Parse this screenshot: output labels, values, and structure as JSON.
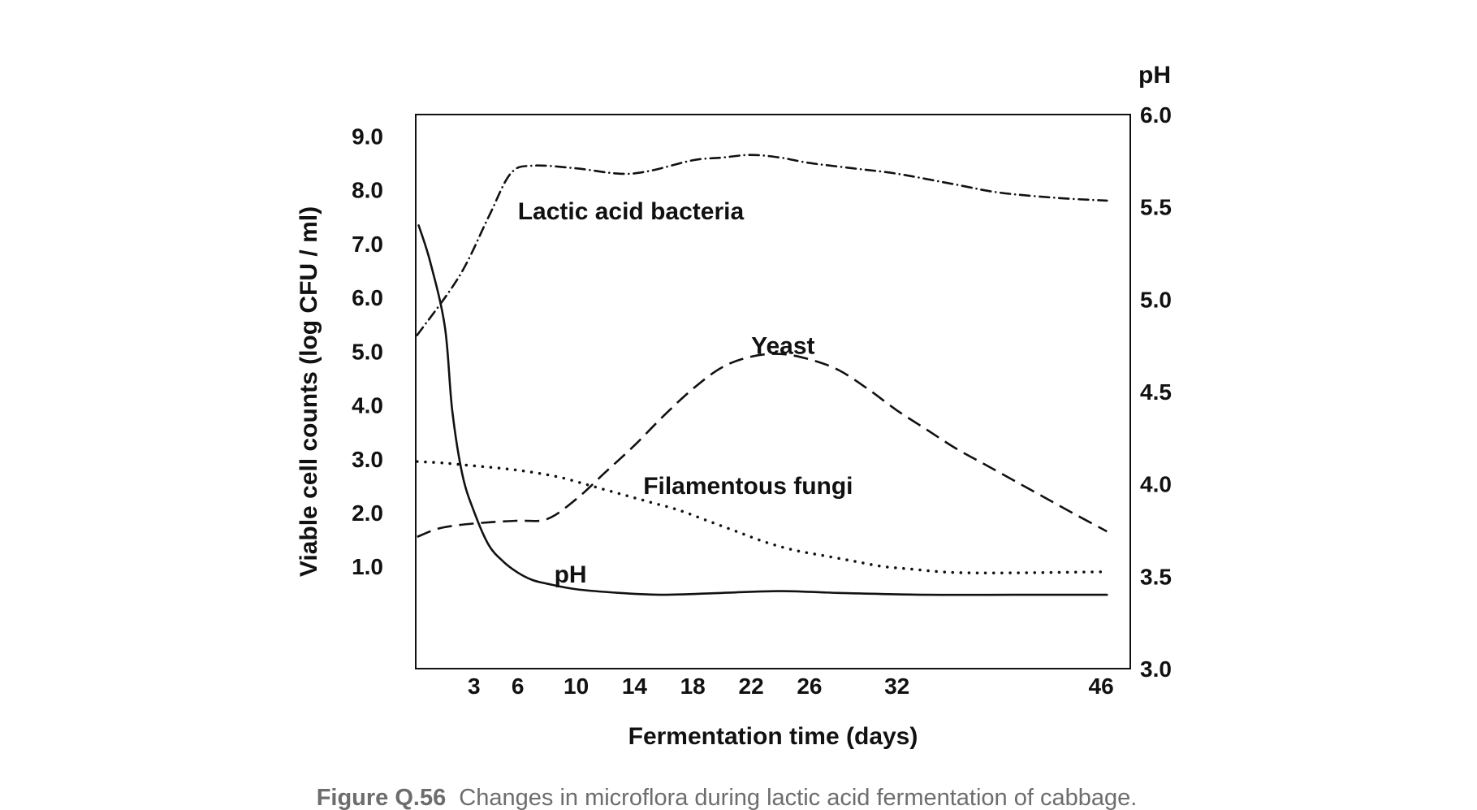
{
  "chart_data": {
    "type": "line",
    "xlabel": "Fermentation time (days)",
    "ylabel_left": "Viable cell counts (log CFU / ml)",
    "ylabel_right": "pH",
    "xlim": [
      -1,
      48
    ],
    "ylim_left": [
      -0.9,
      9.4
    ],
    "ylim_right": [
      3.0,
      6.0
    ],
    "x_ticks": [
      3,
      6,
      10,
      14,
      18,
      22,
      26,
      32,
      46
    ],
    "y_left_ticks": [
      "9.0",
      "8.0",
      "7.0",
      "6.0",
      "5.0",
      "4.0",
      "3.0",
      "2.0",
      "1.0"
    ],
    "y_right_ticks": [
      "6.0",
      "5.5",
      "5.0",
      "4.5",
      "4.0",
      "3.5",
      "3.0"
    ],
    "grid": false,
    "legend": "none",
    "series": [
      {
        "name": "Lactic acid bacteria",
        "axis": "left",
        "style": "dashdot",
        "x": [
          -0.9,
          2,
          4,
          5.5,
          7,
          10,
          13,
          15,
          18,
          20,
          22,
          24,
          26,
          29,
          32,
          36,
          39,
          43,
          46.4
        ],
        "y": [
          5.3,
          6.4,
          7.5,
          8.3,
          8.45,
          8.4,
          8.3,
          8.35,
          8.55,
          8.6,
          8.65,
          8.6,
          8.5,
          8.4,
          8.3,
          8.1,
          7.95,
          7.85,
          7.8
        ]
      },
      {
        "name": "Yeast",
        "axis": "left",
        "style": "dashed",
        "x": [
          -0.9,
          0.5,
          2,
          4,
          6,
          8,
          10,
          12,
          14,
          16,
          18,
          20,
          22,
          24,
          26,
          28,
          30,
          32,
          34,
          36,
          38,
          40,
          42,
          44,
          46.4
        ],
        "y": [
          1.55,
          1.7,
          1.77,
          1.82,
          1.85,
          1.88,
          2.25,
          2.75,
          3.25,
          3.8,
          4.3,
          4.7,
          4.9,
          4.95,
          4.85,
          4.65,
          4.3,
          3.9,
          3.55,
          3.2,
          2.9,
          2.6,
          2.3,
          2.0,
          1.65
        ]
      },
      {
        "name": "Filamentous fungi",
        "axis": "left",
        "style": "dotted",
        "x": [
          -0.9,
          1,
          3,
          5,
          7,
          9,
          11,
          13,
          15,
          17,
          19,
          21,
          23,
          25,
          27,
          29,
          31,
          33,
          35,
          37,
          40,
          43,
          46.4
        ],
        "y": [
          2.95,
          2.92,
          2.87,
          2.82,
          2.75,
          2.65,
          2.5,
          2.35,
          2.2,
          2.05,
          1.85,
          1.65,
          1.45,
          1.3,
          1.2,
          1.1,
          1.0,
          0.95,
          0.9,
          0.88,
          0.88,
          0.89,
          0.9
        ]
      },
      {
        "name": "pH",
        "axis": "right",
        "style": "solid",
        "x": [
          -0.8,
          0,
          1,
          1.5,
          2.2,
          3,
          4,
          5,
          6,
          7,
          8,
          10,
          13,
          16,
          20,
          24,
          28,
          34,
          40,
          46.4
        ],
        "y": [
          5.4,
          5.2,
          4.85,
          4.4,
          4.05,
          3.85,
          3.67,
          3.58,
          3.52,
          3.48,
          3.46,
          3.43,
          3.41,
          3.4,
          3.41,
          3.42,
          3.41,
          3.4,
          3.4,
          3.4
        ]
      }
    ],
    "annotations": [
      {
        "text": "Lactic acid bacteria",
        "x": 6,
        "y": 7.6
      },
      {
        "text": "Yeast",
        "x": 22,
        "y": 5.1
      },
      {
        "text": "Filamentous fungi",
        "x": 14.6,
        "y": 2.5
      },
      {
        "text": "pH",
        "x": 8.5,
        "y": 0.85
      }
    ]
  },
  "caption": {
    "number": "Figure Q.56",
    "text": "Changes in microflora during lactic acid fermentation of cabbage."
  }
}
